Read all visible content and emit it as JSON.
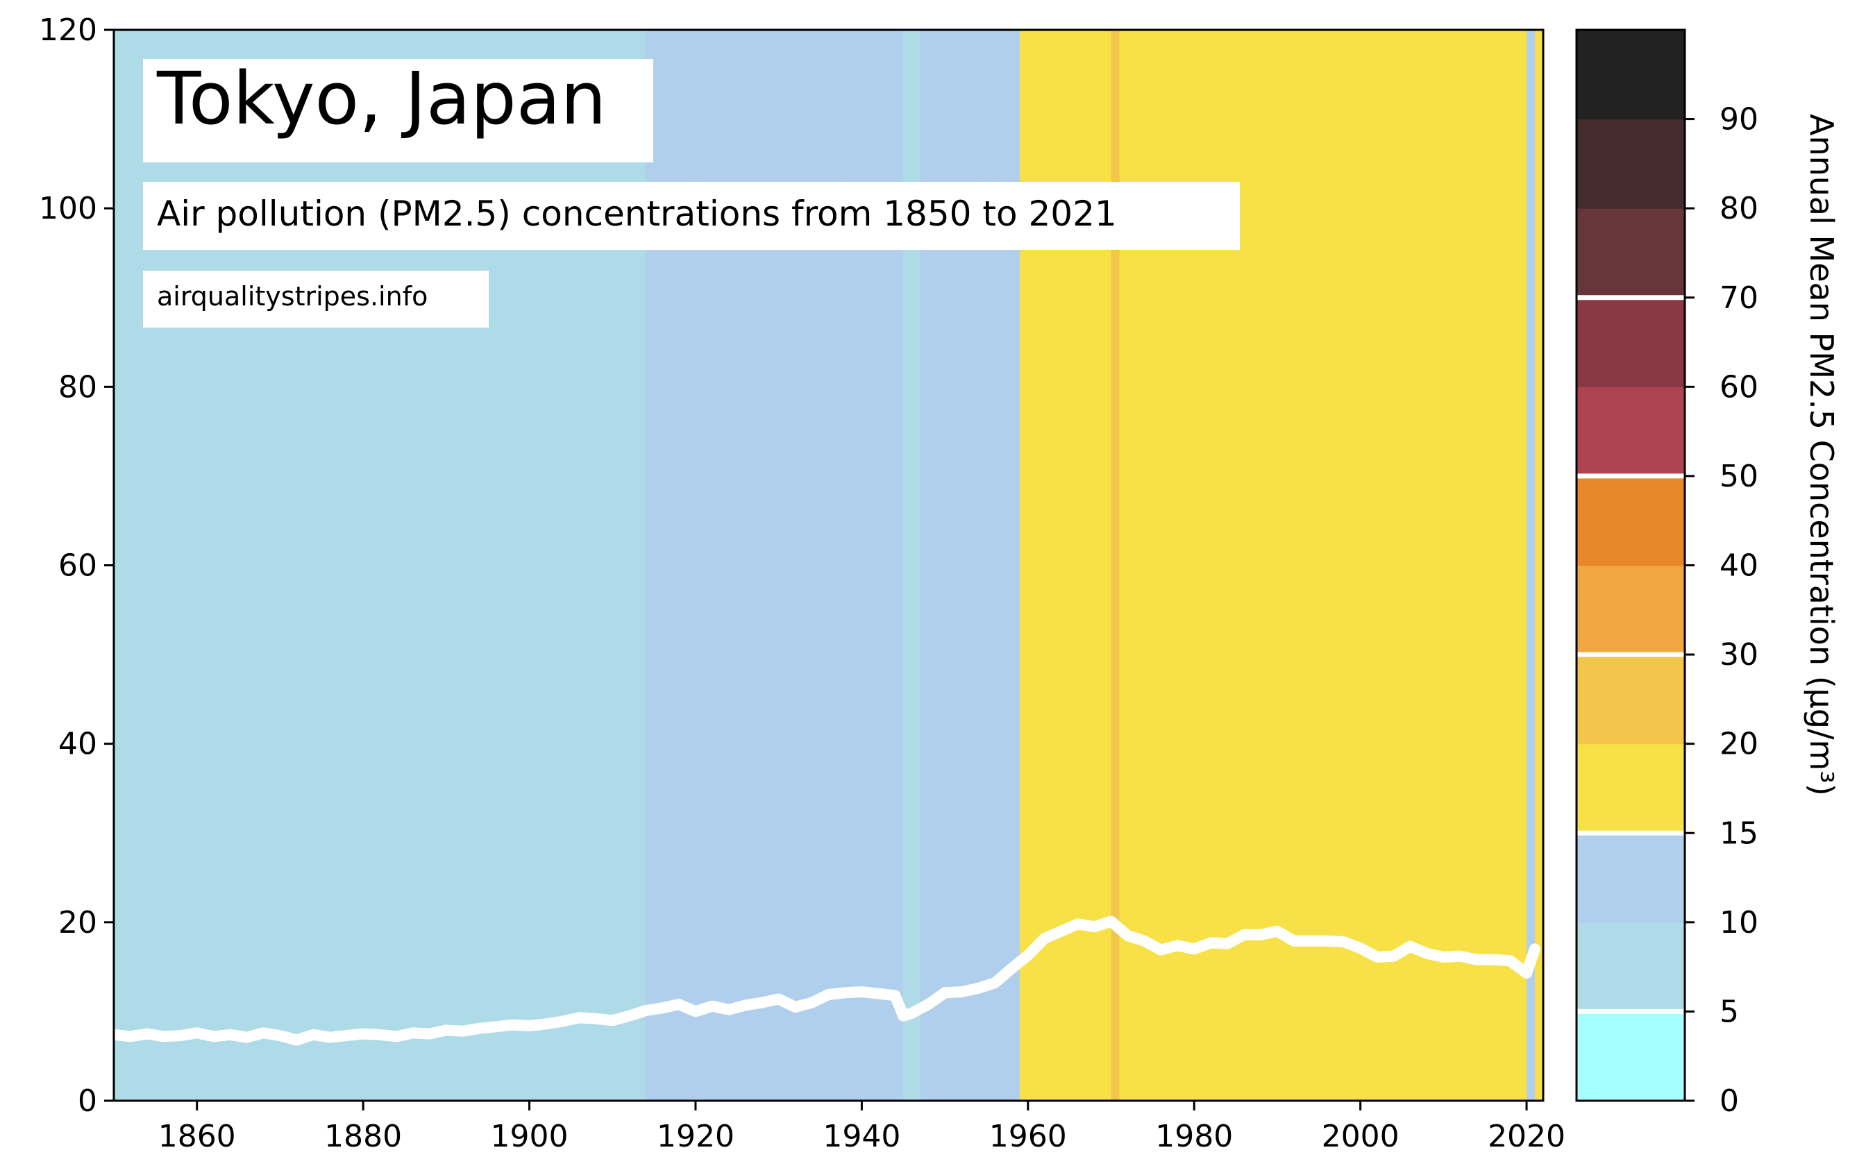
{
  "chart_data": {
    "type": "heatmap",
    "title": "Tokyo, Japan",
    "subtitle": "Air pollution (PM2.5) concentrations from 1850 to 2021",
    "source": "airqualitystripes.info",
    "xlabel": "",
    "ylabel": "",
    "xlim": [
      1850,
      2022
    ],
    "ylim": [
      0,
      120
    ],
    "xticks": [
      1860,
      1880,
      1900,
      1920,
      1940,
      1960,
      1980,
      2000,
      2020
    ],
    "yticks": [
      0,
      20,
      40,
      60,
      80,
      100,
      120
    ],
    "colorbar": {
      "label": "Annual Mean PM2.5 Concentration (μg/m³)",
      "ticks": [
        "0",
        "5",
        "10",
        "15",
        "20",
        "30",
        "40",
        "50",
        "60",
        "70",
        "80",
        "90"
      ],
      "bands": [
        {
          "from": 0,
          "to": 5,
          "color": "#a6ffff"
        },
        {
          "from": 5,
          "to": 10,
          "color": "#afdae8"
        },
        {
          "from": 10,
          "to": 15,
          "color": "#b0cfec"
        },
        {
          "from": 15,
          "to": 20,
          "color": "#f8e047"
        },
        {
          "from": 20,
          "to": 30,
          "color": "#f2c54c"
        },
        {
          "from": 30,
          "to": 40,
          "color": "#f0a641"
        },
        {
          "from": 40,
          "to": 50,
          "color": "#e88729"
        },
        {
          "from": 50,
          "to": 60,
          "color": "#ae4450"
        },
        {
          "from": 60,
          "to": 70,
          "color": "#883944"
        },
        {
          "from": 70,
          "to": 80,
          "color": "#66363b"
        },
        {
          "from": 80,
          "to": 90,
          "color": "#452b2e"
        },
        {
          "from": 90,
          "to": 100,
          "color": "#222222"
        }
      ],
      "guideline_values": [
        5,
        15,
        30,
        50,
        70
      ]
    },
    "series": [
      {
        "x": [
          1850,
          1852,
          1854,
          1856,
          1858,
          1860,
          1862,
          1864,
          1866,
          1868,
          1870,
          1872,
          1874,
          1876,
          1878,
          1880,
          1882,
          1884,
          1886,
          1888,
          1890,
          1892,
          1894,
          1896,
          1898,
          1900,
          1902,
          1904,
          1906,
          1908,
          1910,
          1912,
          1914,
          1916,
          1918,
          1920,
          1922,
          1924,
          1926,
          1928,
          1930,
          1932,
          1934,
          1936,
          1938,
          1940,
          1942,
          1944,
          1945,
          1946,
          1948,
          1950,
          1952,
          1954,
          1956,
          1958,
          1960,
          1962,
          1964,
          1966,
          1968,
          1970,
          1972,
          1974,
          1976,
          1978,
          1980,
          1982,
          1984,
          1986,
          1988,
          1990,
          1992,
          1994,
          1996,
          1998,
          2000,
          2002,
          2004,
          2006,
          2008,
          2010,
          2012,
          2014,
          2016,
          2018,
          2020,
          2021
        ],
        "values": [
          7.4,
          7.2,
          7.5,
          7.2,
          7.3,
          7.6,
          7.2,
          7.4,
          7.1,
          7.6,
          7.3,
          6.8,
          7.4,
          7.1,
          7.3,
          7.5,
          7.4,
          7.2,
          7.6,
          7.5,
          7.9,
          7.8,
          8.1,
          8.3,
          8.5,
          8.4,
          8.6,
          8.9,
          9.3,
          9.2,
          9.0,
          9.5,
          10.1,
          10.4,
          10.8,
          10.0,
          10.6,
          10.2,
          10.7,
          11.0,
          11.4,
          10.5,
          11.0,
          11.9,
          12.1,
          12.2,
          12.0,
          11.8,
          9.5,
          9.8,
          10.8,
          12.1,
          12.2,
          12.6,
          13.2,
          14.8,
          16.3,
          18.2,
          19.0,
          19.8,
          19.5,
          20.1,
          18.5,
          17.9,
          16.9,
          17.4,
          17.0,
          17.7,
          17.6,
          18.6,
          18.6,
          19.0,
          17.9,
          17.9,
          17.9,
          17.8,
          17.1,
          16.1,
          16.2,
          17.3,
          16.5,
          16.1,
          16.2,
          15.8,
          15.8,
          15.7,
          14.3,
          17.0
        ]
      }
    ]
  }
}
